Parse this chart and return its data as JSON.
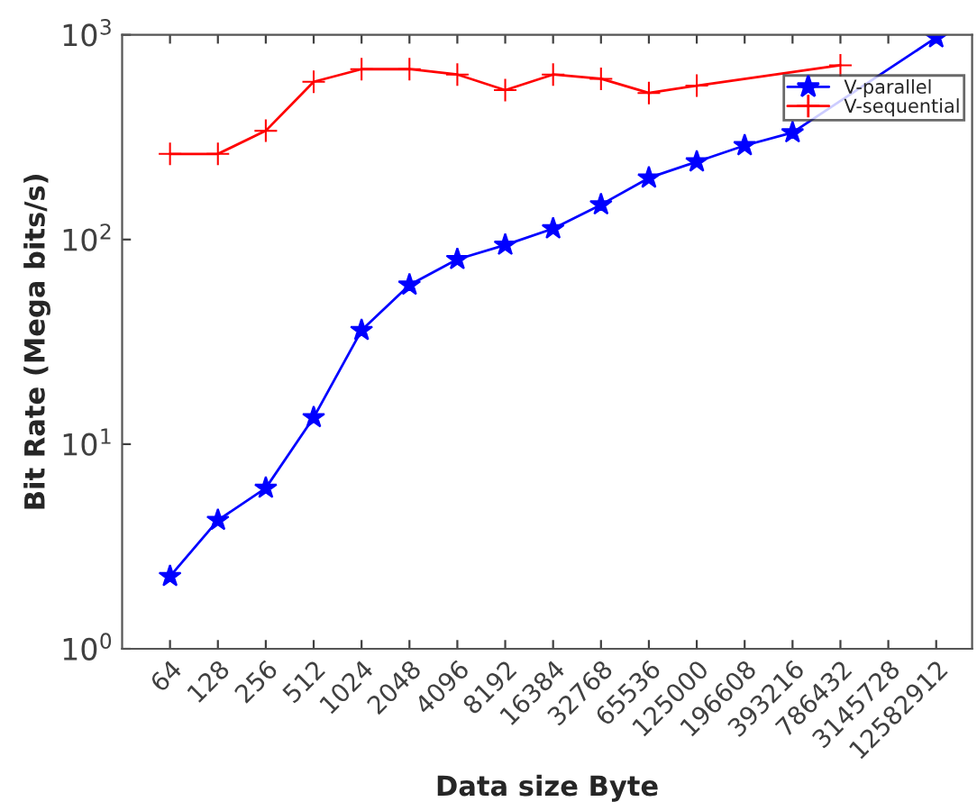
{
  "chart_data": {
    "type": "line",
    "xlabel": "Data size Byte",
    "ylabel": "Bit Rate (Mega bits/s)",
    "categories": [
      "64",
      "128",
      "256",
      "512",
      "1024",
      "2048",
      "4096",
      "8192",
      "16384",
      "32768",
      "65536",
      "125000",
      "196608",
      "393216",
      "786432",
      "3145728",
      "12582912"
    ],
    "series": [
      {
        "name": "V-parallel",
        "color": "#0000ff",
        "marker": "star",
        "values": [
          2.26,
          4.25,
          6.1,
          13.5,
          36,
          60,
          80,
          94,
          113,
          148,
          200,
          240,
          288,
          333,
          null,
          null,
          970
        ]
      },
      {
        "name": "V-sequential",
        "color": "#ff0000",
        "marker": "cross",
        "values": [
          262,
          262,
          340,
          590,
          680,
          680,
          640,
          537,
          640,
          610,
          520,
          565,
          null,
          null,
          710,
          null,
          null
        ]
      }
    ],
    "log": "y",
    "ylim": [
      1,
      1000
    ],
    "yticks": [
      {
        "value": 1,
        "label": "10$^{0}$"
      },
      {
        "value": 10,
        "label": "10$^{1}$"
      },
      {
        "value": 100,
        "label": "10$^{2}$"
      },
      {
        "value": 1000,
        "label": "10$^{3}$"
      }
    ],
    "grid": false,
    "legend": "top right"
  }
}
